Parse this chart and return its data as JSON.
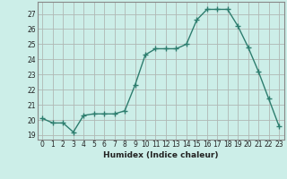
{
  "x": [
    0,
    1,
    2,
    3,
    4,
    5,
    6,
    7,
    8,
    9,
    10,
    11,
    12,
    13,
    14,
    15,
    16,
    17,
    18,
    19,
    20,
    21,
    22,
    23
  ],
  "y": [
    20.1,
    19.8,
    19.8,
    19.2,
    20.3,
    20.4,
    20.4,
    20.4,
    20.6,
    22.3,
    24.3,
    24.7,
    24.7,
    24.7,
    25.0,
    26.6,
    27.3,
    27.3,
    27.3,
    26.2,
    24.8,
    23.2,
    21.4,
    19.6
  ],
  "line_color": "#2d7d6e",
  "marker": "+",
  "markersize": 4,
  "bg_color": "#cceee8",
  "grid_color": "#b0b8b4",
  "xlabel": "Humidex (Indice chaleur)",
  "ylabel_ticks": [
    19,
    20,
    21,
    22,
    23,
    24,
    25,
    26,
    27
  ],
  "xlim": [
    -0.5,
    23.5
  ],
  "ylim": [
    18.7,
    27.8
  ],
  "tick_fontsize": 5.5,
  "xlabel_fontsize": 6.5
}
